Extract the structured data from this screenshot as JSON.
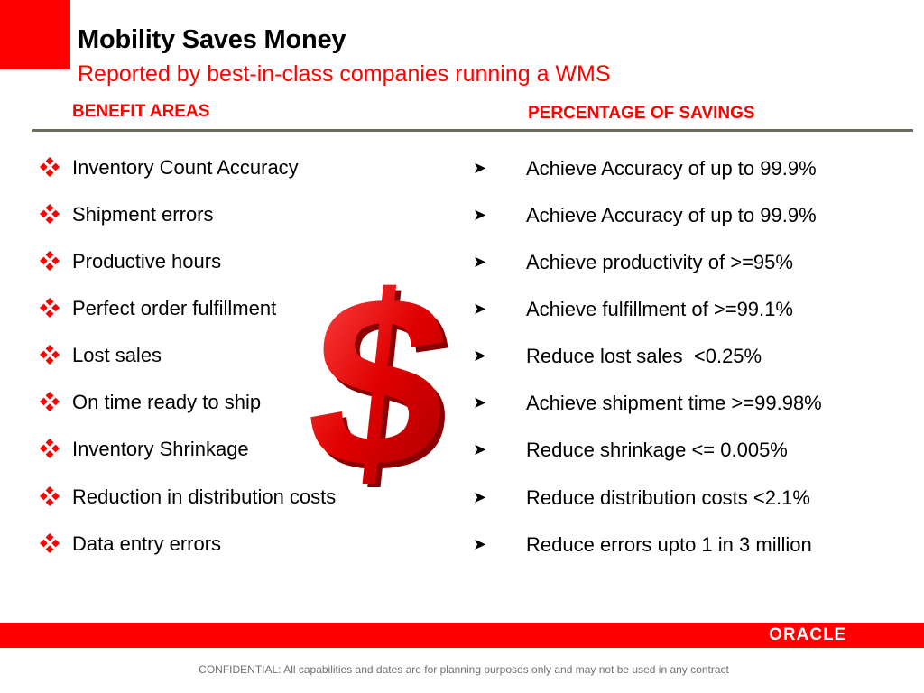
{
  "header": {
    "title": "Mobility Saves Money",
    "subtitle": "Reported by best-in-class companies running a WMS"
  },
  "columns": {
    "left_heading": "BENEFIT AREAS",
    "right_heading": "PERCENTAGE OF SAVINGS"
  },
  "benefits": [
    "Inventory Count Accuracy",
    "Shipment errors",
    "Productive hours",
    "Perfect order fulfillment",
    "Lost sales",
    "On time ready to ship",
    "Inventory Shrinkage",
    "Reduction in distribution costs",
    "Data entry errors"
  ],
  "savings": [
    "Achieve Accuracy of up to 99.9%",
    "Achieve Accuracy of up to 99.9%",
    "Achieve productivity of >=95%",
    "Achieve fulfillment of >=99.1%",
    "Reduce lost sales  <0.25%",
    "Achieve shipment time >=99.98%",
    "Reduce shrinkage <= 0.005%",
    "Reduce distribution costs <2.1%",
    "Reduce errors upto 1 in 3 million"
  ],
  "icons": {
    "left_bullet": "diamond-bullet-icon",
    "right_bullet": "arrowhead-bullet-icon",
    "center_graphic": "dollar-sign-icon"
  },
  "colors": {
    "accent": "#ff0000",
    "rule": "#6d6d5d"
  },
  "footer": {
    "brand": "ORACLE",
    "confidential": "CONFIDENTIAL:  All capabilities and dates are for planning purposes only and may not be used in any contract"
  }
}
